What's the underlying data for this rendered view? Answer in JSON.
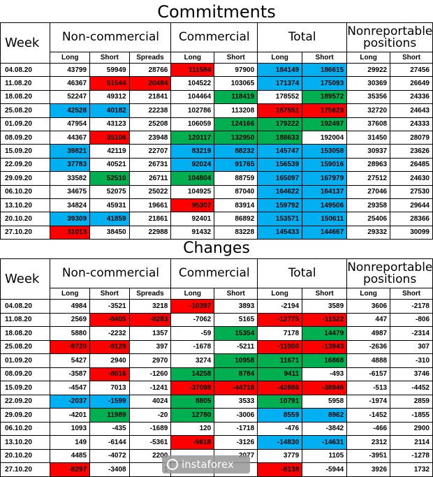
{
  "commitments": {
    "title": "Commitments",
    "week_label": "Week",
    "groups": {
      "noncommercial": "Non-commercial",
      "commercial": "Commercial",
      "total": "Total",
      "nonreportable": "Nonreportable positions"
    },
    "columns": [
      "Long",
      "Short",
      "Spreads",
      "Long",
      "Short",
      "Long",
      "Short",
      "Long",
      "Short"
    ],
    "rows": [
      {
        "week": "04.08.20",
        "values": [
          "43799",
          "59949",
          "28766",
          "111584",
          "97900",
          "184149",
          "186615",
          "29922",
          "27456"
        ],
        "colors": [
          "",
          "",
          "",
          "red",
          "",
          "blue",
          "blue",
          "",
          ""
        ]
      },
      {
        "week": "11.08.20",
        "values": [
          "46367",
          "51544",
          "20484",
          "104522",
          "103065",
          "171374",
          "175093",
          "30369",
          "26649"
        ],
        "colors": [
          "",
          "red",
          "red",
          "",
          "",
          "blue",
          "blue",
          "",
          ""
        ]
      },
      {
        "week": "18.08.20",
        "values": [
          "52247",
          "49312",
          "21841",
          "104464",
          "118419",
          "178552",
          "189572",
          "35356",
          "24336"
        ],
        "colors": [
          "",
          "",
          "",
          "",
          "green",
          "",
          "green",
          "",
          ""
        ]
      },
      {
        "week": "25.08.20",
        "values": [
          "42528",
          "40182",
          "22238",
          "102786",
          "113208",
          "167551",
          "175629",
          "32720",
          "24643"
        ],
        "colors": [
          "blue",
          "blue",
          "",
          "",
          "",
          "red",
          "red",
          "",
          ""
        ]
      },
      {
        "week": "01.09.20",
        "values": [
          "47954",
          "43123",
          "25208",
          "106059",
          "124166",
          "179222",
          "192497",
          "37608",
          "24333"
        ],
        "colors": [
          "",
          "",
          "",
          "",
          "green",
          "green",
          "green",
          "",
          ""
        ]
      },
      {
        "week": "08.09.20",
        "values": [
          "44367",
          "35106",
          "23948",
          "120117",
          "132950",
          "188633",
          "192004",
          "31450",
          "28079"
        ],
        "colors": [
          "",
          "red",
          "",
          "green",
          "green",
          "green",
          "",
          "",
          ""
        ]
      },
      {
        "week": "15.09.20",
        "values": [
          "39821",
          "42119",
          "22707",
          "83219",
          "88232",
          "145747",
          "153058",
          "30937",
          "23626"
        ],
        "colors": [
          "blue",
          "",
          "",
          "blue",
          "blue",
          "blue",
          "blue",
          "",
          ""
        ]
      },
      {
        "week": "22.09.20",
        "values": [
          "37783",
          "40521",
          "26731",
          "92024",
          "91765",
          "156539",
          "159016",
          "28963",
          "26485"
        ],
        "colors": [
          "blue",
          "",
          "",
          "blue",
          "blue",
          "blue",
          "blue",
          "",
          ""
        ]
      },
      {
        "week": "29.09.20",
        "values": [
          "33582",
          "52510",
          "26711",
          "104804",
          "88759",
          "165097",
          "167979",
          "27512",
          "24630"
        ],
        "colors": [
          "",
          "green",
          "",
          "green",
          "",
          "blue",
          "blue",
          "",
          ""
        ]
      },
      {
        "week": "06.10.20",
        "values": [
          "34675",
          "52075",
          "25022",
          "104925",
          "87040",
          "164622",
          "164137",
          "27046",
          "27530"
        ],
        "colors": [
          "",
          "",
          "",
          "",
          "",
          "blue",
          "blue",
          "",
          ""
        ]
      },
      {
        "week": "13.10.20",
        "values": [
          "34824",
          "45931",
          "19661",
          "95307",
          "83914",
          "159792",
          "149506",
          "29358",
          "29644"
        ],
        "colors": [
          "",
          "",
          "",
          "red",
          "",
          "blue",
          "blue",
          "",
          ""
        ]
      },
      {
        "week": "20.10.20",
        "values": [
          "39309",
          "41859",
          "21861",
          "92401",
          "86892",
          "153571",
          "150611",
          "25406",
          "28366"
        ],
        "colors": [
          "blue",
          "blue",
          "",
          "",
          "",
          "blue",
          "blue",
          "",
          ""
        ]
      },
      {
        "week": "27.10.20",
        "values": [
          "31013",
          "38450",
          "22988",
          "91432",
          "83228",
          "145433",
          "144667",
          "29332",
          "30099"
        ],
        "colors": [
          "red",
          "",
          "",
          "",
          "",
          "blue",
          "blue",
          "",
          ""
        ]
      }
    ]
  },
  "changes": {
    "title": "Changes",
    "week_label": "Week",
    "groups": {
      "noncommercial": "Non-commercial",
      "commercial": "Commercial",
      "total": "Total",
      "nonreportable": "Nonreportable positions"
    },
    "columns": [
      "Long",
      "Short",
      "Spreads",
      "Long",
      "Short",
      "Long",
      "Short",
      "Long",
      "Short"
    ],
    "rows": [
      {
        "week": "04.08.20",
        "values": [
          "4984",
          "-3521",
          "3218",
          "-10397",
          "3893",
          "-2194",
          "3589",
          "3606",
          "-2178"
        ],
        "colors": [
          "",
          "",
          "",
          "red",
          "",
          "",
          "",
          "",
          ""
        ]
      },
      {
        "week": "11.08.20",
        "values": [
          "2569",
          "-8405",
          "-8283",
          "-7062",
          "5165",
          "-12775",
          "-11522",
          "447",
          "-806"
        ],
        "colors": [
          "",
          "red",
          "red",
          "",
          "",
          "red",
          "red",
          "",
          ""
        ]
      },
      {
        "week": "18.08.20",
        "values": [
          "5880",
          "-2232",
          "1357",
          "-59",
          "15354",
          "7178",
          "14479",
          "4987",
          "-2314"
        ],
        "colors": [
          "",
          "",
          "",
          "",
          "green",
          "",
          "green",
          "",
          ""
        ]
      },
      {
        "week": "25.08.20",
        "values": [
          "-9720",
          "-9129",
          "397",
          "-1678",
          "-5211",
          "-11000",
          "-13943",
          "-2636",
          "307"
        ],
        "colors": [
          "red",
          "red",
          "",
          "",
          "",
          "red",
          "red",
          "",
          ""
        ]
      },
      {
        "week": "01.09.20",
        "values": [
          "5427",
          "2940",
          "2970",
          "3274",
          "10958",
          "11671",
          "16868",
          "4888",
          "-310"
        ],
        "colors": [
          "",
          "",
          "",
          "",
          "green",
          "green",
          "green",
          "",
          ""
        ]
      },
      {
        "week": "08.09.20",
        "values": [
          "-3587",
          "-8016",
          "-1260",
          "14258",
          "8784",
          "9411",
          "-493",
          "-6157",
          "3746"
        ],
        "colors": [
          "",
          "red",
          "",
          "green",
          "green",
          "green",
          "",
          "",
          ""
        ]
      },
      {
        "week": "15.09.20",
        "values": [
          "-4547",
          "7013",
          "-1241",
          "-37098",
          "-44718",
          "-42886",
          "-38946",
          "-513",
          "-4452"
        ],
        "colors": [
          "",
          "",
          "",
          "red",
          "red",
          "red",
          "red",
          "",
          ""
        ]
      },
      {
        "week": "22.09.20",
        "values": [
          "-2037",
          "-1599",
          "4024",
          "8805",
          "3533",
          "10791",
          "5958",
          "-1974",
          "2859"
        ],
        "colors": [
          "blue",
          "blue",
          "",
          "green",
          "",
          "green",
          "",
          "",
          ""
        ]
      },
      {
        "week": "29.09.20",
        "values": [
          "-4201",
          "11989",
          "-20",
          "12780",
          "-3006",
          "8559",
          "8962",
          "-1452",
          "-1855"
        ],
        "colors": [
          "",
          "green",
          "",
          "green",
          "",
          "blue",
          "blue",
          "",
          ""
        ]
      },
      {
        "week": "06.10.20",
        "values": [
          "1093",
          "-435",
          "-1689",
          "120",
          "-1718",
          "-476",
          "-3842",
          "-466",
          "2900"
        ],
        "colors": [
          "",
          "",
          "",
          "",
          "",
          "",
          "",
          "",
          ""
        ]
      },
      {
        "week": "13.10.20",
        "values": [
          "149",
          "-6144",
          "-5361",
          "-9618",
          "-3126",
          "-14830",
          "-14631",
          "2312",
          "2114"
        ],
        "colors": [
          "",
          "",
          "",
          "red",
          "",
          "blue",
          "blue",
          "",
          ""
        ]
      },
      {
        "week": "20.10.20",
        "values": [
          "4485",
          "-4072",
          "2200",
          "",
          "2077",
          "3779",
          "1105",
          "-3951",
          "-1278"
        ],
        "colors": [
          "",
          "",
          "",
          "",
          "",
          "",
          "",
          "",
          ""
        ]
      },
      {
        "week": "27.10.20",
        "values": [
          "-8297",
          "-3408",
          "1",
          "",
          "",
          "-8138",
          "-5944",
          "3926",
          "1732"
        ],
        "colors": [
          "red",
          "",
          "",
          "",
          "",
          "red",
          "",
          "",
          ""
        ]
      }
    ]
  },
  "watermark": {
    "text": "instaforex"
  },
  "colors": {
    "red": "#ff0000",
    "green": "#00b050",
    "blue": "#00b0f0"
  }
}
